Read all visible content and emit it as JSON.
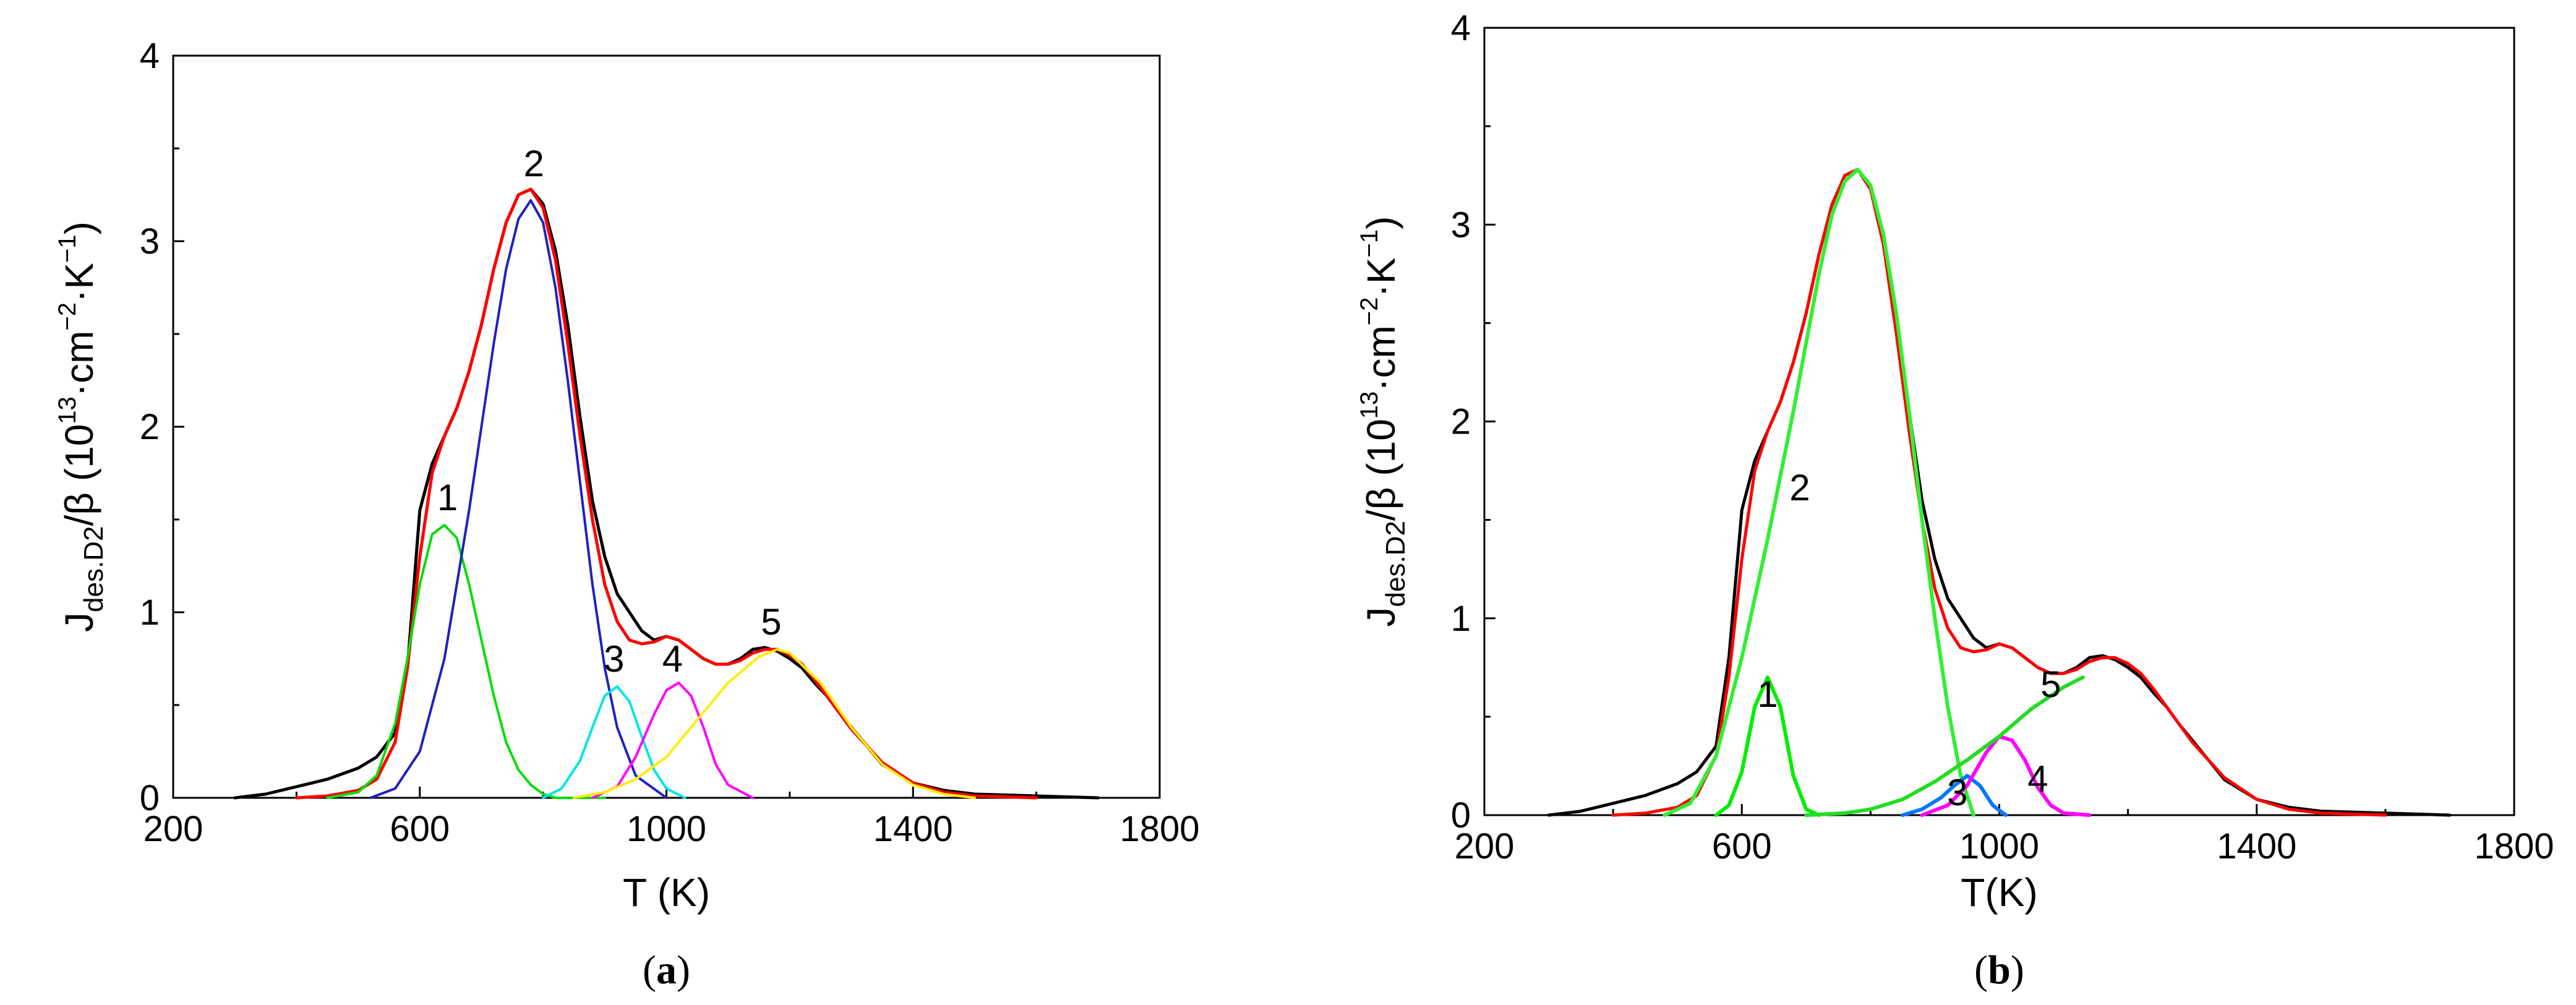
{
  "chart_data": [
    {
      "type": "line",
      "panel_label": "(a)",
      "panel_letter": "a",
      "xlabel": "T (K)",
      "ylabel": "J",
      "ylabel_sub": "des.D2",
      "ylabel_rest": "/β  (10",
      "ylabel_sup1": "13",
      "ylabel_mid": "·cm",
      "ylabel_sup2": "−2",
      "ylabel_mid2": "·K",
      "ylabel_sup3": "−1",
      "ylabel_end": ")",
      "xlim": [
        200,
        1800
      ],
      "ylim": [
        0,
        4
      ],
      "xticks": [
        "200",
        "600",
        "1000",
        "1400",
        "1800"
      ],
      "yticks": [
        "0",
        "1",
        "2",
        "3",
        "4"
      ],
      "grid": false,
      "series": [
        {
          "color": "#000000",
          "kind": "experimental",
          "x": [
            300,
            350,
            400,
            450,
            500,
            530,
            560,
            580,
            600,
            620,
            640,
            660,
            680,
            700,
            720,
            740,
            760,
            780,
            800,
            820,
            840,
            860,
            880,
            900,
            920,
            940,
            960,
            980,
            1000,
            1020,
            1040,
            1060,
            1080,
            1100,
            1120,
            1140,
            1160,
            1180,
            1200,
            1220,
            1240,
            1260,
            1280,
            1300,
            1350,
            1400,
            1450,
            1500,
            1600,
            1700
          ],
          "y": [
            0.0,
            0.02,
            0.06,
            0.1,
            0.16,
            0.22,
            0.35,
            0.7,
            1.55,
            1.8,
            1.95,
            2.1,
            2.3,
            2.55,
            2.85,
            3.1,
            3.25,
            3.28,
            3.2,
            2.95,
            2.55,
            2.05,
            1.6,
            1.3,
            1.1,
            1.0,
            0.9,
            0.85,
            0.87,
            0.85,
            0.8,
            0.75,
            0.72,
            0.72,
            0.75,
            0.8,
            0.81,
            0.79,
            0.75,
            0.7,
            0.62,
            0.55,
            0.46,
            0.38,
            0.18,
            0.08,
            0.04,
            0.02,
            0.01,
            0.0
          ]
        },
        {
          "color": "#ff0000",
          "kind": "fit",
          "x": [
            400,
            450,
            500,
            530,
            560,
            580,
            600,
            620,
            640,
            660,
            680,
            700,
            720,
            740,
            760,
            780,
            800,
            820,
            840,
            860,
            880,
            900,
            920,
            940,
            960,
            980,
            1000,
            1020,
            1040,
            1060,
            1080,
            1100,
            1120,
            1140,
            1160,
            1180,
            1200,
            1220,
            1240,
            1260,
            1280,
            1300,
            1350,
            1400,
            1450,
            1500,
            1600
          ],
          "y": [
            0.0,
            0.01,
            0.04,
            0.1,
            0.3,
            0.7,
            1.3,
            1.75,
            1.95,
            2.1,
            2.3,
            2.55,
            2.85,
            3.1,
            3.25,
            3.28,
            3.18,
            2.9,
            2.45,
            1.95,
            1.5,
            1.15,
            0.95,
            0.85,
            0.83,
            0.84,
            0.87,
            0.85,
            0.8,
            0.75,
            0.72,
            0.72,
            0.74,
            0.78,
            0.8,
            0.8,
            0.77,
            0.72,
            0.64,
            0.55,
            0.46,
            0.37,
            0.19,
            0.08,
            0.03,
            0.01,
            0.0
          ]
        },
        {
          "color": "#00dd00",
          "kind": "component",
          "label": "1",
          "x": [
            450,
            500,
            530,
            560,
            580,
            600,
            620,
            640,
            660,
            680,
            700,
            720,
            740,
            760,
            780,
            800,
            820,
            850,
            900
          ],
          "y": [
            0.0,
            0.03,
            0.12,
            0.4,
            0.75,
            1.15,
            1.42,
            1.47,
            1.4,
            1.15,
            0.85,
            0.55,
            0.3,
            0.15,
            0.07,
            0.02,
            0.0,
            0.0,
            0.0
          ]
        },
        {
          "color": "#2020c0",
          "kind": "component",
          "label": "2",
          "x": [
            520,
            560,
            600,
            640,
            680,
            700,
            720,
            740,
            760,
            780,
            800,
            820,
            840,
            860,
            880,
            900,
            920,
            950,
            1000
          ],
          "y": [
            0.0,
            0.05,
            0.25,
            0.75,
            1.55,
            2.0,
            2.45,
            2.85,
            3.12,
            3.22,
            3.1,
            2.75,
            2.25,
            1.7,
            1.15,
            0.7,
            0.38,
            0.12,
            0.0
          ]
        },
        {
          "color": "#00e5e5",
          "kind": "component",
          "label": "3",
          "x": [
            800,
            830,
            860,
            880,
            900,
            920,
            940,
            960,
            980,
            1000,
            1030
          ],
          "y": [
            0.0,
            0.05,
            0.2,
            0.38,
            0.55,
            0.6,
            0.52,
            0.33,
            0.15,
            0.05,
            0.0
          ]
        },
        {
          "color": "#ff00ff",
          "kind": "component",
          "label": "4",
          "x": [
            880,
            920,
            950,
            980,
            1000,
            1020,
            1040,
            1060,
            1080,
            1100,
            1140
          ],
          "y": [
            0.0,
            0.06,
            0.22,
            0.45,
            0.58,
            0.62,
            0.55,
            0.38,
            0.18,
            0.07,
            0.0
          ]
        },
        {
          "color": "#ffee00",
          "kind": "component",
          "label": "5",
          "x": [
            850,
            900,
            950,
            1000,
            1050,
            1100,
            1150,
            1180,
            1200,
            1250,
            1300,
            1350,
            1400,
            1450,
            1500
          ],
          "y": [
            0.0,
            0.03,
            0.1,
            0.22,
            0.42,
            0.62,
            0.76,
            0.8,
            0.78,
            0.62,
            0.38,
            0.18,
            0.07,
            0.02,
            0.0
          ]
        }
      ],
      "peak_labels": [
        {
          "text": "1",
          "x": 645,
          "y": 1.55
        },
        {
          "text": "2",
          "x": 785,
          "y": 3.35
        },
        {
          "text": "3",
          "x": 915,
          "y": 0.68
        },
        {
          "text": "4",
          "x": 1010,
          "y": 0.68
        },
        {
          "text": "5",
          "x": 1170,
          "y": 0.88
        }
      ]
    },
    {
      "type": "line",
      "panel_label": "(b)",
      "panel_letter": "b",
      "xlabel": "T(K)",
      "ylabel": "J",
      "ylabel_sub": "des.D2",
      "ylabel_rest": "/β  (10",
      "ylabel_sup1": "13",
      "ylabel_mid": "·cm",
      "ylabel_sup2": "−2",
      "ylabel_mid2": "·K",
      "ylabel_sup3": "−1",
      "ylabel_end": ")",
      "xlim": [
        200,
        1800
      ],
      "ylim": [
        0,
        4
      ],
      "xticks": [
        "200",
        "600",
        "1000",
        "1400",
        "1800"
      ],
      "yticks": [
        "0",
        "1",
        "2",
        "3",
        "4"
      ],
      "grid": false,
      "series": [
        {
          "color": "#000000",
          "kind": "experimental",
          "x": [
            300,
            350,
            400,
            450,
            500,
            530,
            560,
            580,
            600,
            620,
            640,
            660,
            680,
            700,
            720,
            740,
            760,
            780,
            800,
            820,
            840,
            860,
            880,
            900,
            920,
            940,
            960,
            980,
            1000,
            1020,
            1040,
            1060,
            1080,
            1100,
            1120,
            1140,
            1160,
            1180,
            1200,
            1220,
            1240,
            1260,
            1280,
            1300,
            1350,
            1400,
            1450,
            1500,
            1600,
            1700
          ],
          "y": [
            0.0,
            0.02,
            0.06,
            0.1,
            0.16,
            0.22,
            0.35,
            0.8,
            1.55,
            1.8,
            1.95,
            2.1,
            2.3,
            2.55,
            2.85,
            3.1,
            3.25,
            3.28,
            3.2,
            2.95,
            2.55,
            2.05,
            1.6,
            1.3,
            1.1,
            1.0,
            0.9,
            0.85,
            0.87,
            0.85,
            0.8,
            0.75,
            0.72,
            0.72,
            0.75,
            0.8,
            0.81,
            0.79,
            0.75,
            0.7,
            0.62,
            0.55,
            0.46,
            0.38,
            0.18,
            0.08,
            0.04,
            0.02,
            0.01,
            0.0
          ]
        },
        {
          "color": "#ff0000",
          "kind": "fit",
          "x": [
            400,
            450,
            500,
            530,
            560,
            580,
            600,
            620,
            640,
            660,
            680,
            700,
            720,
            740,
            760,
            780,
            800,
            820,
            840,
            860,
            880,
            900,
            920,
            940,
            960,
            980,
            1000,
            1020,
            1040,
            1060,
            1080,
            1100,
            1120,
            1140,
            1160,
            1180,
            1200,
            1220,
            1240,
            1260,
            1280,
            1300,
            1350,
            1400,
            1450,
            1500,
            1600
          ],
          "y": [
            0.0,
            0.01,
            0.04,
            0.1,
            0.3,
            0.7,
            1.3,
            1.75,
            1.95,
            2.1,
            2.3,
            2.55,
            2.85,
            3.1,
            3.25,
            3.28,
            3.18,
            2.9,
            2.45,
            1.95,
            1.5,
            1.15,
            0.95,
            0.85,
            0.83,
            0.84,
            0.87,
            0.85,
            0.8,
            0.75,
            0.72,
            0.72,
            0.74,
            0.78,
            0.8,
            0.8,
            0.77,
            0.72,
            0.64,
            0.55,
            0.46,
            0.37,
            0.19,
            0.08,
            0.03,
            0.01,
            0.0
          ]
        },
        {
          "color": "#00ee00",
          "kind": "component",
          "label": "1",
          "x": [
            560,
            580,
            600,
            620,
            640,
            660,
            680,
            700,
            720
          ],
          "y": [
            0.0,
            0.05,
            0.22,
            0.55,
            0.7,
            0.55,
            0.2,
            0.03,
            0.0
          ]
        },
        {
          "color": "#33ee33",
          "kind": "component",
          "label": "2",
          "x": [
            480,
            520,
            560,
            600,
            640,
            680,
            700,
            720,
            740,
            760,
            780,
            800,
            820,
            840,
            860,
            880,
            900,
            920,
            940,
            960
          ],
          "y": [
            0.0,
            0.06,
            0.3,
            0.8,
            1.4,
            2.05,
            2.4,
            2.75,
            3.05,
            3.22,
            3.28,
            3.2,
            2.95,
            2.55,
            2.05,
            1.5,
            1.0,
            0.55,
            0.2,
            0.0
          ]
        },
        {
          "color": "#0077ff",
          "kind": "component",
          "label": "3",
          "x": [
            850,
            880,
            910,
            930,
            950,
            970,
            990,
            1010
          ],
          "y": [
            0.0,
            0.03,
            0.09,
            0.15,
            0.2,
            0.15,
            0.05,
            0.0
          ]
        },
        {
          "color": "#ff00ff",
          "kind": "component",
          "label": "4",
          "x": [
            880,
            920,
            950,
            980,
            1000,
            1020,
            1040,
            1060,
            1080,
            1100,
            1140
          ],
          "y": [
            0.0,
            0.05,
            0.15,
            0.32,
            0.4,
            0.38,
            0.28,
            0.14,
            0.05,
            0.01,
            0.0
          ]
        },
        {
          "color": "#22dd22",
          "kind": "component",
          "label": "5",
          "x": [
            700,
            760,
            800,
            850,
            900,
            950,
            1000,
            1050,
            1100,
            1130
          ],
          "y": [
            0.0,
            0.01,
            0.03,
            0.08,
            0.17,
            0.28,
            0.4,
            0.54,
            0.65,
            0.7
          ]
        }
      ],
      "peak_labels": [
        {
          "text": "1",
          "x": 640,
          "y": 0.55
        },
        {
          "text": "2",
          "x": 690,
          "y": 1.6
        },
        {
          "text": "3",
          "x": 935,
          "y": 0.05
        },
        {
          "text": "4",
          "x": 1060,
          "y": 0.12
        },
        {
          "text": "5",
          "x": 1080,
          "y": 0.6
        }
      ]
    }
  ]
}
